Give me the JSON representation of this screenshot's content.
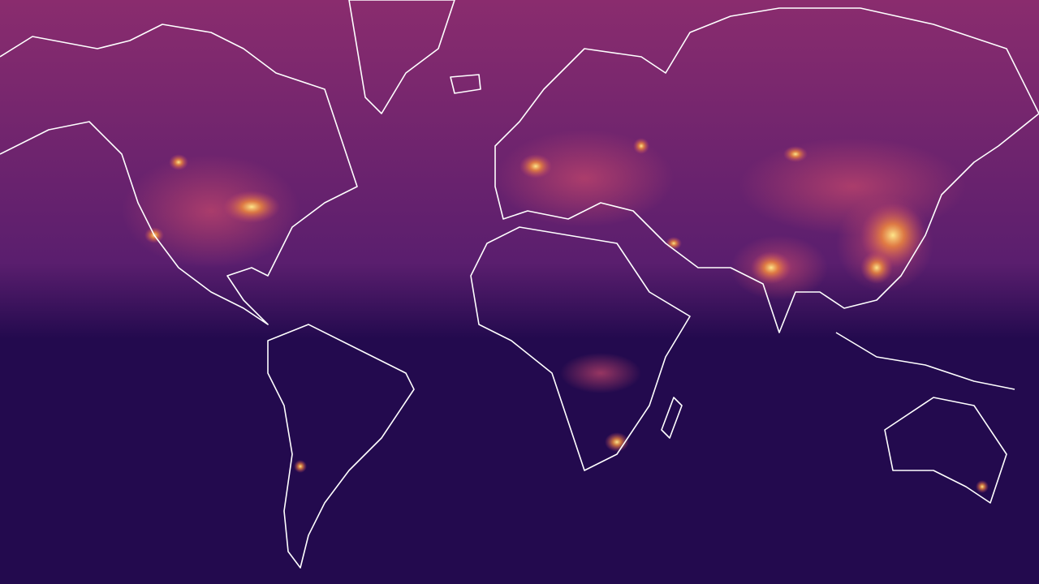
{
  "map": {
    "projection": "mercator",
    "colormap": "inferno",
    "colors": {
      "north_background": "#8a2c6e",
      "mid_background": "#5a1e6e",
      "south_background": "#230a4e",
      "hotspot_low": "#c8486a",
      "hotspot_mid": "#f08a3a",
      "hotspot_high": "#fde68a",
      "coastline": "#ffffff"
    }
  }
}
